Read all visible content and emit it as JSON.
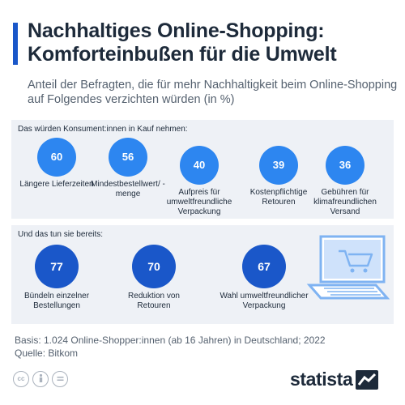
{
  "title": "Nachhaltiges Online-Shopping: Komforteinbußen für die Umwelt",
  "subtitle": "Anteil der Befragten, die für mehr Nachhaltigkeit beim Online-Shopping auf Folgendes verzichten würden (in %)",
  "colors": {
    "accent": "#1a57c9",
    "light_circle": "#2d86f0",
    "dark_circle": "#1a57c9",
    "panel_bg": "#eef1f6",
    "laptop": "#7fb3f2"
  },
  "chart_data": [
    {
      "type": "bubble",
      "heading": "Das würden Konsument:innen in Kauf nehmen:",
      "unit": "%",
      "items": [
        {
          "label": "Längere Lieferzeiten",
          "value": 60
        },
        {
          "label": "Mindestbestellwert/ -menge",
          "value": 56
        },
        {
          "label": "Aufpreis für umweltfreundliche Verpackung",
          "value": 40
        },
        {
          "label": "Kostenpflichtige Retouren",
          "value": 39
        },
        {
          "label": "Gebühren für klimafreundlichen Versand",
          "value": 36
        }
      ]
    },
    {
      "type": "bubble",
      "heading": "Und das tun sie bereits:",
      "unit": "%",
      "items": [
        {
          "label": "Bündeln einzelner Bestellungen",
          "value": 77
        },
        {
          "label": "Reduktion von Retouren",
          "value": 70
        },
        {
          "label": "Wahl umweltfreundlicher Verpackung",
          "value": 67
        }
      ]
    }
  ],
  "footer": {
    "basis": "Basis: 1.024 Online-Shopper:innen (ab 16 Jahren) in Deutschland; 2022",
    "source": "Quelle: Bitkom"
  },
  "license_icons": [
    "cc-icon",
    "by-icon",
    "nd-icon"
  ],
  "brand": {
    "name": "statista",
    "icon": "statista-logo-icon"
  }
}
